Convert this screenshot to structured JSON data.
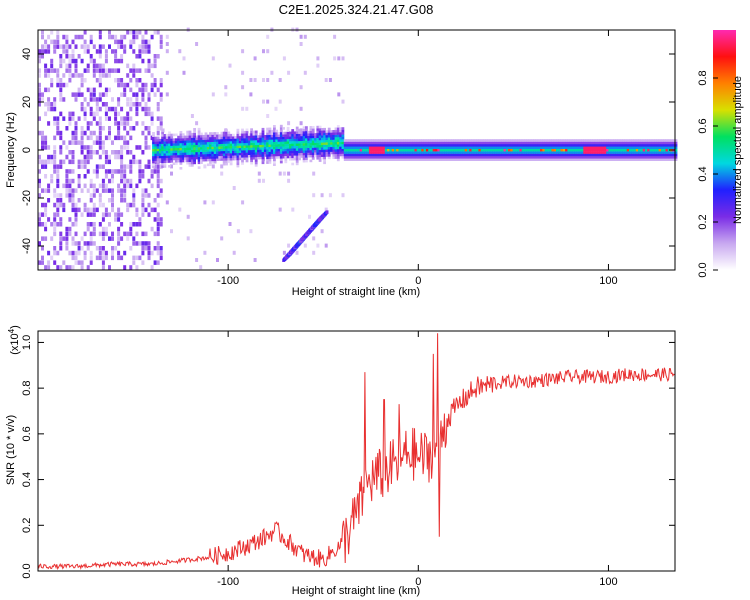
{
  "chart_data": [
    {
      "type": "heatmap",
      "title": "C2E1.2025.324.21.47.G08",
      "xlabel": "Height of straight line (km)",
      "ylabel": "Frequency (Hz)",
      "xlim": [
        -200,
        135
      ],
      "ylim": [
        -50,
        50
      ],
      "xticks": [
        -100,
        0,
        100
      ],
      "yticks": [
        -40,
        -20,
        0,
        20,
        40
      ],
      "colorbar": {
        "label": "Normalized spectral amplitude",
        "range": [
          0,
          1
        ],
        "ticks": [
          0.0,
          0.2,
          0.4,
          0.6,
          0.8
        ],
        "colors": [
          "#ffffff",
          "#c8a8f0",
          "#7a2ce6",
          "#2020ff",
          "#00d8e0",
          "#00e060",
          "#d8e000",
          "#ff8000",
          "#ff1010",
          "#ff2ab0"
        ]
      },
      "features": [
        {
          "name": "main band",
          "x_range": [
            -140,
            135
          ],
          "frequency_hz": 0,
          "peak_amplitude": 1.0
        },
        {
          "name": "descending streak",
          "x_range": [
            -70,
            -50
          ],
          "frequency_hz_range": [
            -45,
            -27
          ]
        },
        {
          "name": "noisy region",
          "x_range": [
            -200,
            -135
          ],
          "frequency_hz_range": [
            -50,
            50
          ]
        }
      ]
    },
    {
      "type": "line",
      "title": "",
      "xlabel": "Height of straight line (km)",
      "ylabel": "SNR (10 * v/v)",
      "ylabel_scale": "(x10",
      "ylabel_scale_exp": "4",
      "ylabel_scale_close": ")",
      "xlim": [
        -200,
        135
      ],
      "ylim": [
        0,
        1.05
      ],
      "xticks": [
        -100,
        0,
        100
      ],
      "yticks": [
        0.0,
        0.2,
        0.4,
        0.6,
        0.8,
        1.0
      ],
      "series": [
        {
          "name": "SNR",
          "color": "#e83030",
          "x": [
            -200,
            -180,
            -160,
            -140,
            -120,
            -110,
            -100,
            -90,
            -80,
            -75,
            -70,
            -60,
            -50,
            -40,
            -35,
            -30,
            -28,
            -25,
            -20,
            -15,
            -10,
            -5,
            0,
            5,
            10,
            12,
            15,
            20,
            25,
            30,
            40,
            50,
            60,
            70,
            80,
            90,
            100,
            110,
            120,
            135
          ],
          "y": [
            0.02,
            0.02,
            0.03,
            0.03,
            0.05,
            0.06,
            0.08,
            0.11,
            0.15,
            0.18,
            0.14,
            0.07,
            0.05,
            0.12,
            0.2,
            0.3,
            0.35,
            0.4,
            0.42,
            0.45,
            0.48,
            0.52,
            0.5,
            0.5,
            0.55,
            0.6,
            0.66,
            0.72,
            0.76,
            0.8,
            0.82,
            0.83,
            0.83,
            0.84,
            0.85,
            0.85,
            0.85,
            0.86,
            0.86,
            0.86
          ]
        }
      ],
      "spikes": [
        {
          "x": -28,
          "y": 0.87
        },
        {
          "x": -18,
          "y": 0.75
        },
        {
          "x": -10,
          "y": 0.73
        },
        {
          "x": 8,
          "y": 0.95
        },
        {
          "x": 10,
          "y": 1.04
        },
        {
          "x": 11,
          "y": 0.15
        }
      ]
    }
  ]
}
